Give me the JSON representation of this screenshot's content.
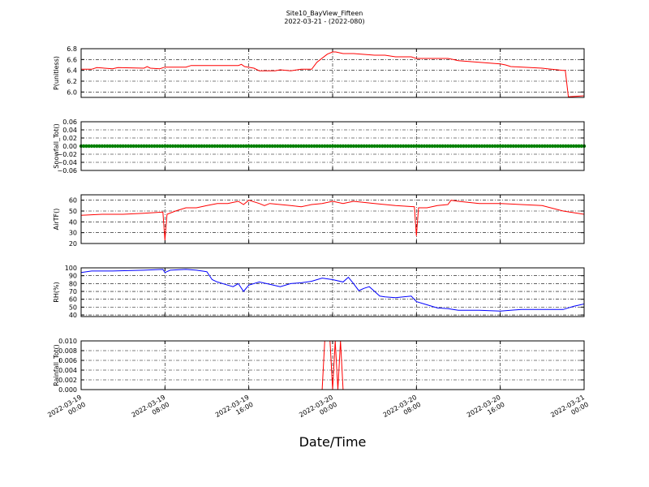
{
  "figure": {
    "title": "Site10_BayView_Fifteen",
    "subtitle": "2022-03-21 - (2022-080)",
    "xlabel": "Date/Time",
    "x_tick_labels": [
      [
        "2022-03-19",
        "00:00"
      ],
      [
        "2022-03-19",
        "08:00"
      ],
      [
        "2022-03-19",
        "16:00"
      ],
      [
        "2022-03-20",
        "00:00"
      ],
      [
        "2022-03-20",
        "08:00"
      ],
      [
        "2022-03-20",
        "16:00"
      ],
      [
        "2022-03-21",
        "00:00"
      ]
    ],
    "grid": true,
    "grid_style": "dash-dot"
  },
  "chart_data": [
    {
      "type": "line",
      "ylabel": "P(unitless)",
      "ylim": [
        5.9,
        6.8
      ],
      "yticks": [
        "6.8",
        "6.6",
        "6.4",
        "6.2",
        "6.0"
      ],
      "color": "#ff0000",
      "x_hours": [
        0,
        1,
        1.5,
        3,
        3.5,
        6,
        6.3,
        6.6,
        7.5,
        8,
        10,
        10.5,
        15,
        15.3,
        15.6,
        16.5,
        17,
        18.5,
        19,
        20,
        21,
        22,
        22.5,
        23.5,
        24,
        24.3,
        25,
        26,
        28,
        29,
        30,
        31.5,
        32,
        35,
        35.5,
        36,
        38,
        40,
        40.5,
        41,
        44,
        44.5,
        46,
        46.2,
        46.5,
        48
      ],
      "values": [
        6.42,
        6.42,
        6.45,
        6.43,
        6.45,
        6.44,
        6.47,
        6.44,
        6.43,
        6.46,
        6.46,
        6.49,
        6.49,
        6.51,
        6.47,
        6.44,
        6.39,
        6.39,
        6.41,
        6.39,
        6.42,
        6.42,
        6.55,
        6.7,
        6.74,
        6.74,
        6.71,
        6.71,
        6.68,
        6.68,
        6.65,
        6.65,
        6.62,
        6.62,
        6.6,
        6.58,
        6.55,
        6.52,
        6.5,
        6.47,
        6.44,
        6.43,
        6.4,
        6.4,
        5.91,
        5.93
      ]
    },
    {
      "type": "scatter",
      "ylabel": "Snowfall_Tot()",
      "ylim": [
        -0.06,
        0.06
      ],
      "yticks": [
        "0.06",
        "0.04",
        "0.02",
        "0.00",
        "−0.02",
        "−0.04",
        "−0.06"
      ],
      "color": "#008000",
      "x_range_hours": [
        0,
        48
      ],
      "interval_minutes": 15,
      "constant_value": 0.0
    },
    {
      "type": "line",
      "ylabel": "AirTF()",
      "ylim": [
        20,
        65
      ],
      "yticks": [
        "60",
        "50",
        "40",
        "30",
        "20"
      ],
      "color": "#ff0000",
      "x_hours": [
        0,
        2,
        4,
        6,
        7.8,
        8,
        8.2,
        9,
        10,
        11,
        12,
        13,
        14,
        15,
        15.5,
        16,
        17,
        17.5,
        18,
        19,
        20,
        21,
        22,
        23,
        24,
        25,
        26,
        28,
        30,
        31.8,
        32,
        32.2,
        33,
        34,
        35,
        35.3,
        36,
        38,
        40,
        42,
        44,
        46,
        48
      ],
      "values": [
        46,
        47,
        47,
        48,
        49,
        23,
        47,
        50,
        53,
        53,
        55,
        57,
        57,
        59,
        56,
        60,
        57,
        55,
        57,
        56,
        55,
        54,
        56,
        57,
        59,
        57,
        59,
        57,
        55,
        54,
        27,
        53,
        53,
        55,
        56,
        60,
        59,
        57,
        57,
        56,
        55,
        50,
        47
      ]
    },
    {
      "type": "line",
      "ylabel": "RH(%)",
      "ylim": [
        38,
        100
      ],
      "yticks": [
        "100",
        "90",
        "80",
        "70",
        "60",
        "50",
        "40"
      ],
      "color": "#0000ff",
      "x_hours": [
        0,
        1,
        3,
        6,
        7.8,
        8,
        8.5,
        10,
        11,
        12,
        12.5,
        13,
        14,
        14.5,
        15,
        15.5,
        16,
        17,
        18,
        19,
        20,
        21,
        22,
        23,
        24,
        25,
        25.5,
        26,
        26.5,
        27,
        27.5,
        28,
        28.5,
        29,
        30,
        31.5,
        32,
        33,
        34,
        35,
        36,
        37,
        38,
        40,
        42,
        44,
        46,
        47,
        48
      ],
      "values": [
        94,
        96,
        96,
        97,
        98,
        94,
        97,
        98,
        97,
        95,
        85,
        82,
        78,
        76,
        80,
        70,
        78,
        82,
        79,
        76,
        80,
        81,
        83,
        87,
        85,
        82,
        88,
        80,
        71,
        74,
        76,
        70,
        64,
        63,
        62,
        64,
        57,
        53,
        49,
        48,
        46,
        46,
        46,
        45,
        47,
        47,
        47,
        51,
        54
      ]
    },
    {
      "type": "line",
      "ylabel": "Rainfall_Tot()",
      "ylim": [
        0.0,
        0.01
      ],
      "yticks": [
        "0.010",
        "0.008",
        "0.006",
        "0.004",
        "0.002",
        "0.000"
      ],
      "color": "#ff0000",
      "x_hours": [
        0,
        23.0,
        23.25,
        23.75,
        24.0,
        24.25,
        24.5,
        24.75,
        25.0,
        48
      ],
      "values": [
        0,
        0,
        0.01,
        0.01,
        0,
        0.01,
        0,
        0.01,
        0,
        0
      ]
    }
  ]
}
